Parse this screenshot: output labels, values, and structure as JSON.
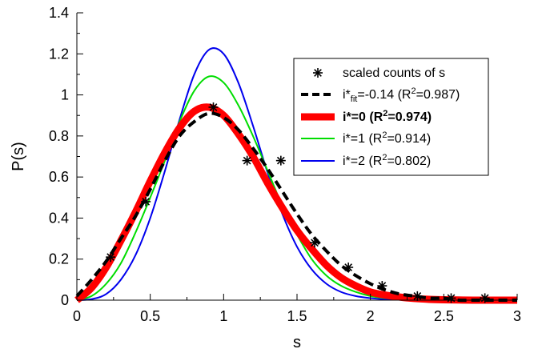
{
  "chart_data": {
    "type": "line",
    "xlabel": "s",
    "ylabel": "P(s)",
    "xlim": [
      0,
      3
    ],
    "ylim": [
      0,
      1.4
    ],
    "x_ticks": [
      0,
      0.5,
      1,
      1.5,
      2,
      2.5,
      3
    ],
    "x_tick_labels": [
      "0",
      "0.5",
      "1",
      "1.5",
      "2",
      "2.5",
      "3"
    ],
    "y_ticks": [
      0,
      0.2,
      0.4,
      0.6,
      0.8,
      1,
      1.2,
      1.4
    ],
    "y_tick_labels": [
      "0",
      "0.2",
      "0.4",
      "0.6",
      "0.8",
      "1",
      "1.2",
      "1.4"
    ],
    "grid": false,
    "legend_position": "top-right",
    "scatter": {
      "name": "scaled counts of s",
      "color": "#000000",
      "marker": "asterisk",
      "points": [
        {
          "x": 0.23,
          "y": 0.21
        },
        {
          "x": 0.47,
          "y": 0.48
        },
        {
          "x": 0.93,
          "y": 0.94
        },
        {
          "x": 1.16,
          "y": 0.68
        },
        {
          "x": 1.39,
          "y": 0.68
        },
        {
          "x": 1.62,
          "y": 0.28
        },
        {
          "x": 1.85,
          "y": 0.16
        },
        {
          "x": 2.08,
          "y": 0.07
        },
        {
          "x": 2.32,
          "y": 0.02
        },
        {
          "x": 2.55,
          "y": 0.01
        },
        {
          "x": 2.78,
          "y": 0.01
        }
      ]
    },
    "series": [
      {
        "name": "i*fit=-0.14 (R2=0.987)",
        "label_parts": [
          "i*",
          "fit",
          "=-0.14 (R",
          "2",
          "=0.987)"
        ],
        "color": "#000000",
        "style": "dashed",
        "x": [
          0,
          0.1,
          0.2,
          0.3,
          0.4,
          0.5,
          0.6,
          0.7,
          0.8,
          0.9,
          1.0,
          1.1,
          1.2,
          1.3,
          1.4,
          1.5,
          1.6,
          1.7,
          1.8,
          1.9,
          2.0,
          2.1,
          2.2,
          2.3,
          2.4,
          2.5,
          2.6,
          2.7,
          2.8,
          2.9,
          3.0
        ],
        "values": [
          0.02,
          0.1,
          0.19,
          0.3,
          0.41,
          0.54,
          0.68,
          0.8,
          0.87,
          0.91,
          0.89,
          0.83,
          0.74,
          0.64,
          0.53,
          0.42,
          0.32,
          0.24,
          0.17,
          0.12,
          0.08,
          0.05,
          0.03,
          0.02,
          0.01,
          0.01,
          0.0,
          0.0,
          0.0,
          0.0,
          0.0
        ]
      },
      {
        "name": "i*=0 (R2=0.974)",
        "label_parts": [
          "i*=0 (R",
          "2",
          "=0.974)"
        ],
        "color": "#ff0000",
        "style": "thick",
        "x": [
          0,
          0.1,
          0.2,
          0.3,
          0.4,
          0.5,
          0.6,
          0.7,
          0.8,
          0.9,
          1.0,
          1.1,
          1.2,
          1.3,
          1.4,
          1.5,
          1.6,
          1.7,
          1.8,
          1.9,
          2.0,
          2.1,
          2.2,
          2.3,
          2.4,
          2.5,
          2.6,
          2.7,
          2.8,
          2.9,
          3.0
        ],
        "values": [
          0.0,
          0.06,
          0.16,
          0.29,
          0.43,
          0.58,
          0.72,
          0.84,
          0.92,
          0.94,
          0.9,
          0.81,
          0.7,
          0.57,
          0.45,
          0.34,
          0.25,
          0.17,
          0.11,
          0.07,
          0.04,
          0.025,
          0.015,
          0.008,
          0.004,
          0.002,
          0.001,
          0.0,
          0.0,
          0.0,
          0.0
        ]
      },
      {
        "name": "i*=1 (R2=0.914)",
        "label_parts": [
          "i*=1 (R",
          "2",
          "=0.914)"
        ],
        "color": "#00dd00",
        "style": "solid",
        "x": [
          0,
          0.1,
          0.2,
          0.3,
          0.4,
          0.5,
          0.6,
          0.7,
          0.8,
          0.9,
          1.0,
          1.1,
          1.2,
          1.3,
          1.4,
          1.5,
          1.6,
          1.7,
          1.8,
          1.9,
          2.0,
          2.1,
          2.2,
          2.3,
          2.4,
          2.5,
          2.6,
          2.7,
          2.8,
          2.9,
          3.0
        ],
        "values": [
          0.0,
          0.02,
          0.08,
          0.18,
          0.33,
          0.5,
          0.68,
          0.87,
          1.02,
          1.09,
          1.06,
          0.95,
          0.8,
          0.63,
          0.46,
          0.32,
          0.2,
          0.12,
          0.07,
          0.04,
          0.02,
          0.01,
          0.005,
          0.002,
          0.001,
          0.0,
          0.0,
          0.0,
          0.0,
          0.0,
          0.0
        ]
      },
      {
        "name": "i*=2 (R2=0.802)",
        "label_parts": [
          "i*=2 (R",
          "2",
          "=0.802)"
        ],
        "color": "#0000ee",
        "style": "solid",
        "x": [
          0,
          0.1,
          0.2,
          0.3,
          0.4,
          0.5,
          0.6,
          0.7,
          0.8,
          0.9,
          1.0,
          1.1,
          1.2,
          1.3,
          1.4,
          1.5,
          1.6,
          1.7,
          1.8,
          1.9,
          2.0,
          2.1,
          2.2,
          2.3,
          2.4,
          2.5,
          2.6,
          2.7,
          2.8,
          2.9,
          3.0
        ],
        "values": [
          0.0,
          0.005,
          0.03,
          0.1,
          0.22,
          0.4,
          0.63,
          0.88,
          1.1,
          1.22,
          1.2,
          1.06,
          0.85,
          0.62,
          0.42,
          0.26,
          0.15,
          0.08,
          0.04,
          0.02,
          0.01,
          0.004,
          0.002,
          0.001,
          0.0,
          0.0,
          0.0,
          0.0,
          0.0,
          0.0,
          0.0
        ]
      }
    ]
  }
}
